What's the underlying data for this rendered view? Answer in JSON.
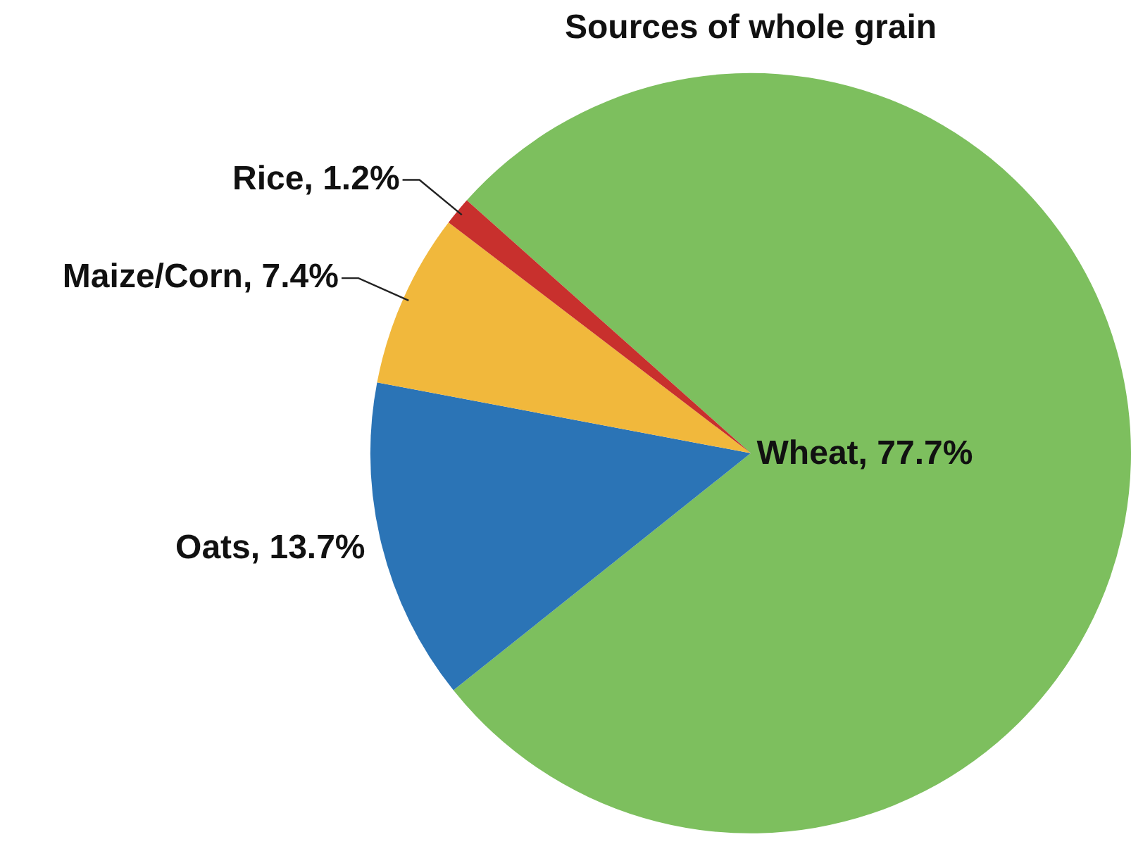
{
  "chart_data": {
    "type": "pie",
    "title": "Sources of whole grain",
    "categories": [
      "Wheat",
      "Oats",
      "Maize/Corn",
      "Rice"
    ],
    "values": [
      77.7,
      13.7,
      7.4,
      1.2
    ],
    "value_labels": [
      "77.7%",
      "13.7%",
      "7.4%",
      "1.2%"
    ],
    "colors": [
      "#7dbf5e",
      "#2b74b6",
      "#f1b83c",
      "#c8302d"
    ],
    "legend": false
  }
}
